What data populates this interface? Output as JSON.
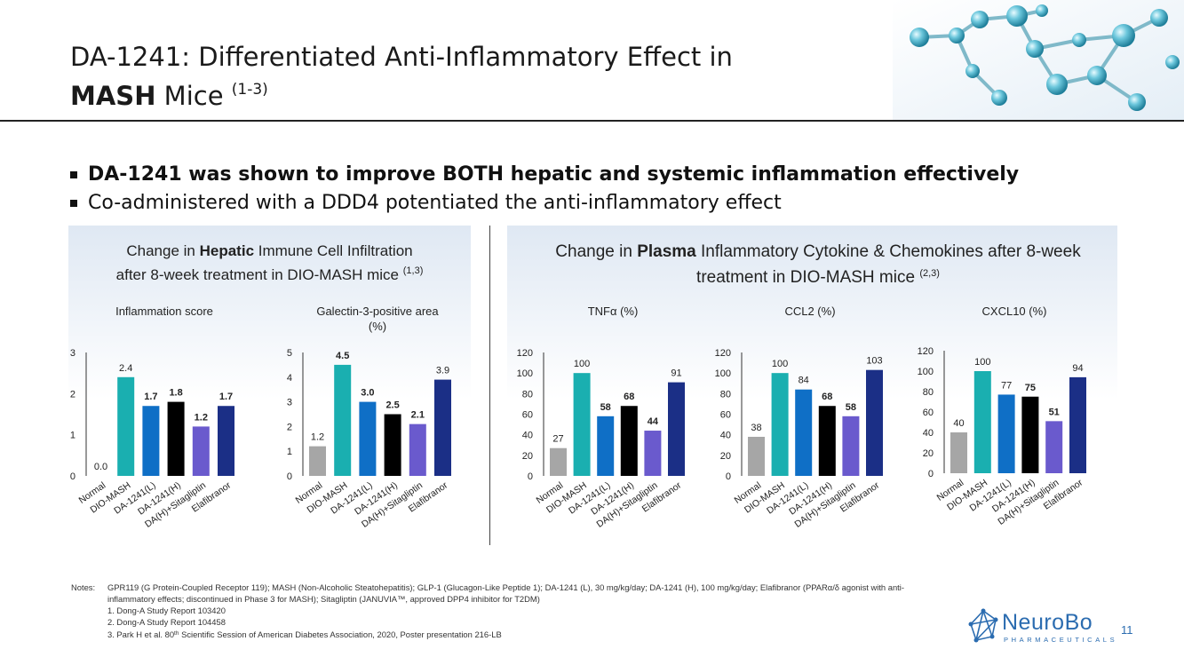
{
  "slide": {
    "title_line1": "DA-1241: Differentiated Anti-Inflammatory Effect in",
    "title_bold": "MASH",
    "title_rest": " Mice ",
    "title_sup": "(1-3)",
    "bullets": [
      "DA-1241 was shown to improve BOTH hepatic and systemic inflammation effectively",
      "Co-administered with a DDD4 potentiated the anti-inflammatory effect"
    ],
    "left_panel": {
      "title_pre": "Change in ",
      "title_bold": "Hepatic",
      "title_post": " Immune Cell Infiltration",
      "title_line2": "after 8-week treatment in DIO-MASH mice ",
      "title_sup": "(1,3)"
    },
    "right_panel": {
      "title_pre": "Change in ",
      "title_bold": "Plasma",
      "title_post": " Inflammatory Cytokine & Chemokines after 8-week",
      "title_line2": "treatment in DIO-MASH mice ",
      "title_sup": "(2,3)"
    },
    "notes": {
      "label": "Notes:",
      "text_line1": "GPR119 (G Protein-Coupled Receptor 119); MASH (Non-Alcoholic Steatohepatitis); GLP-1 (Glucagon-Like Peptide 1); DA-1241 (L), 30 mg/kg/day; DA-1241 (H), 100 mg/kg/day; Elafibranor (PPARα/δ agonist with anti-",
      "text_line2": "inflammatory effects; discontinued in Phase 3 for MASH); Sitagliptin (JANUVIA™, approved DPP4 inhibitor for T2DM)",
      "ref1": "1. Dong-A Study Report 103420",
      "ref2": "2. Dong-A Study Report 104458",
      "ref3_pre": "3. Park H et al. 80",
      "ref3_sup": "th",
      "ref3_post": " Scientific Session of American Diabetes Association, 2020, Poster presentation 216-LB"
    },
    "logo": {
      "word": "NeuroBo",
      "sub": "PHARMACEUTICALS"
    },
    "page_number": "11"
  },
  "colors": {
    "Normal": "#a6a6a6",
    "DIO-MASH": "#1aafb0",
    "DA-1241(L)": "#0f6fc6",
    "DA-1241(H)": "#000000",
    "DA(H)+Sitagliptin": "#6a5acd",
    "Elafibranor": "#1b2f86",
    "accent_logo": "#2b6cb0"
  },
  "chart_data": [
    {
      "type": "bar",
      "title": "Inflammation score",
      "categories": [
        "Normal",
        "DIO-MASH",
        "DA-1241(L)",
        "DA-1241(H)",
        "DA(H)+Sitagliptin",
        "Elafibranor"
      ],
      "values": [
        0.0,
        2.4,
        1.7,
        1.8,
        1.2,
        1.7
      ],
      "labels": [
        "0.0",
        "2.4",
        "1.7",
        "1.8",
        "1.2",
        "1.7"
      ],
      "bold": [
        false,
        false,
        true,
        true,
        true,
        true
      ],
      "ylim": [
        0,
        3
      ],
      "yticks": [
        0,
        1,
        2,
        3
      ]
    },
    {
      "type": "bar",
      "title": "Galectin-3-positive area (%)",
      "title_lines": [
        "Galectin-3-positive area",
        "(%)"
      ],
      "categories": [
        "Normal",
        "DIO-MASH",
        "DA-1241(L)",
        "DA-1241(H)",
        "DA(H)+Sitagliptin",
        "Elafibranor"
      ],
      "values": [
        1.2,
        4.5,
        3.0,
        2.5,
        2.1,
        3.9
      ],
      "labels": [
        "1.2",
        "4.5",
        "3.0",
        "2.5",
        "2.1",
        "3.9"
      ],
      "bold": [
        false,
        true,
        true,
        true,
        true,
        false
      ],
      "ylim": [
        0,
        5
      ],
      "yticks": [
        0,
        1,
        2,
        3,
        4,
        5
      ]
    },
    {
      "type": "bar",
      "title": "TNFα (%)",
      "categories": [
        "Normal",
        "DIO-MASH",
        "DA-1241(L)",
        "DA-1241(H)",
        "DA(H)+Sitagliptin",
        "Elafibranor"
      ],
      "values": [
        27,
        100,
        58,
        68,
        44,
        91
      ],
      "labels": [
        "27",
        "100",
        "58",
        "68",
        "44",
        "91"
      ],
      "bold": [
        false,
        false,
        true,
        true,
        true,
        false
      ],
      "ylim": [
        0,
        120
      ],
      "yticks": [
        0,
        20,
        40,
        60,
        80,
        100,
        120
      ]
    },
    {
      "type": "bar",
      "title": "CCL2 (%)",
      "categories": [
        "Normal",
        "DIO-MASH",
        "DA-1241(L)",
        "DA-1241(H)",
        "DA(H)+Sitagliptin",
        "Elafibranor"
      ],
      "values": [
        38,
        100,
        84,
        68,
        58,
        103
      ],
      "labels": [
        "38",
        "100",
        "84",
        "68",
        "58",
        "103"
      ],
      "bold": [
        false,
        false,
        false,
        true,
        true,
        false
      ],
      "ylim": [
        0,
        120
      ],
      "yticks": [
        0,
        20,
        40,
        60,
        80,
        100,
        120
      ]
    },
    {
      "type": "bar",
      "title": "CXCL10 (%)",
      "categories": [
        "Normal",
        "DIO-MASH",
        "DA-1241(L)",
        "DA-1241(H)",
        "DA(H)+Sitagliptin",
        "Elafibranor"
      ],
      "values": [
        40,
        100,
        77,
        75,
        51,
        94
      ],
      "labels": [
        "40",
        "100",
        "77",
        "75",
        "51",
        "94"
      ],
      "bold": [
        false,
        false,
        false,
        true,
        true,
        false
      ],
      "ylim": [
        0,
        120
      ],
      "yticks": [
        0,
        20,
        40,
        60,
        80,
        100,
        120
      ]
    }
  ]
}
